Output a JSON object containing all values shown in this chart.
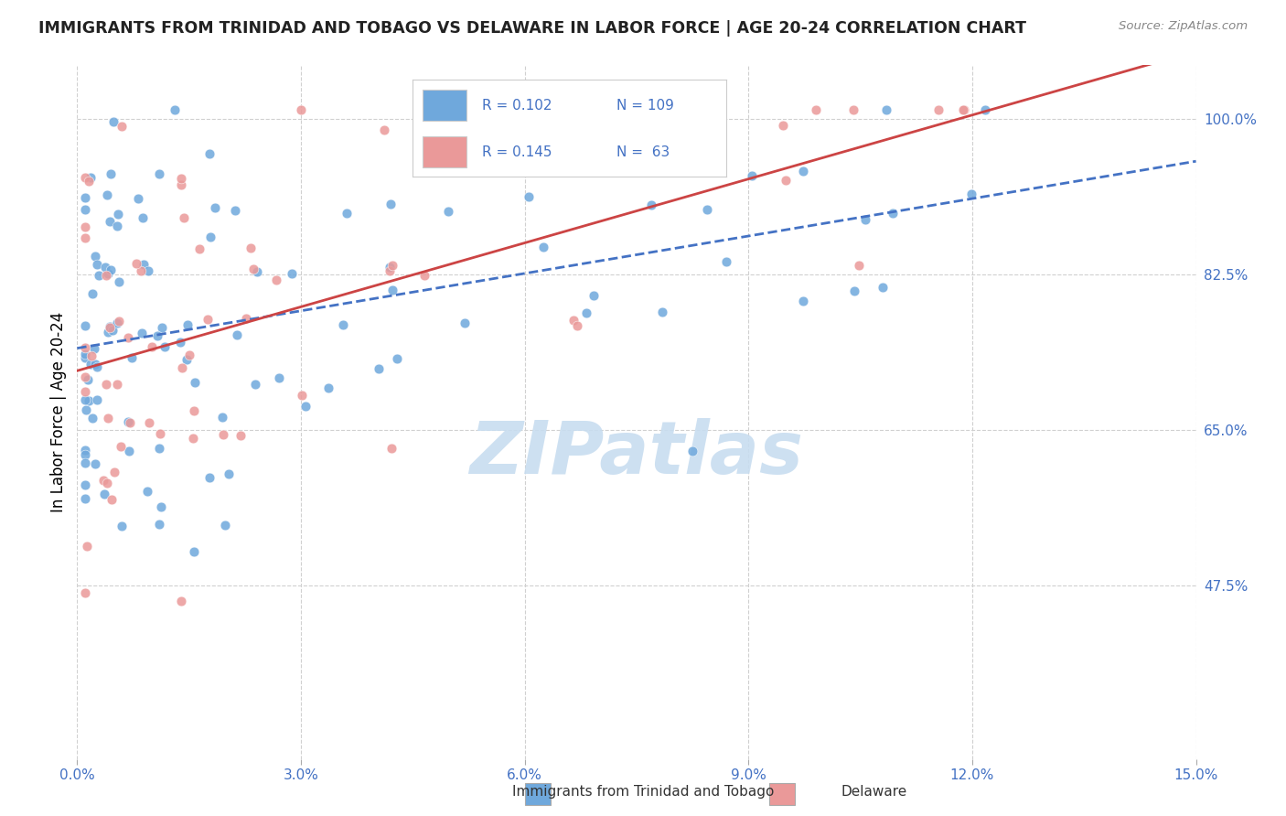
{
  "title": "IMMIGRANTS FROM TRINIDAD AND TOBAGO VS DELAWARE IN LABOR FORCE | AGE 20-24 CORRELATION CHART",
  "source": "Source: ZipAtlas.com",
  "ylabel_label": "In Labor Force | Age 20-24",
  "legend_blue_R": "0.102",
  "legend_blue_N": "109",
  "legend_pink_R": "0.145",
  "legend_pink_N": "63",
  "legend_blue_label": "Immigrants from Trinidad and Tobago",
  "legend_pink_label": "Delaware",
  "blue_color": "#6fa8dc",
  "pink_color": "#ea9999",
  "blue_line_color": "#4472c4",
  "pink_line_color": "#cc4444",
  "text_color": "#4472c4",
  "axis_label_color": "#4472c4",
  "watermark_text_color": "#c8ddf0",
  "background_color": "#ffffff",
  "grid_color": "#d0d0d0",
  "xmin": 0.0,
  "xmax": 0.15,
  "ymin": 0.28,
  "ymax": 1.06,
  "ytick_vals": [
    1.0,
    0.825,
    0.65,
    0.475
  ],
  "ytick_labels": [
    "100.0%",
    "82.5%",
    "65.0%",
    "47.5%"
  ],
  "xtick_vals": [
    0.0,
    0.03,
    0.06,
    0.09,
    0.12,
    0.15
  ],
  "xtick_labels": [
    "0.0%",
    "3.0%",
    "6.0%",
    "9.0%",
    "12.0%",
    "15.0%"
  ]
}
